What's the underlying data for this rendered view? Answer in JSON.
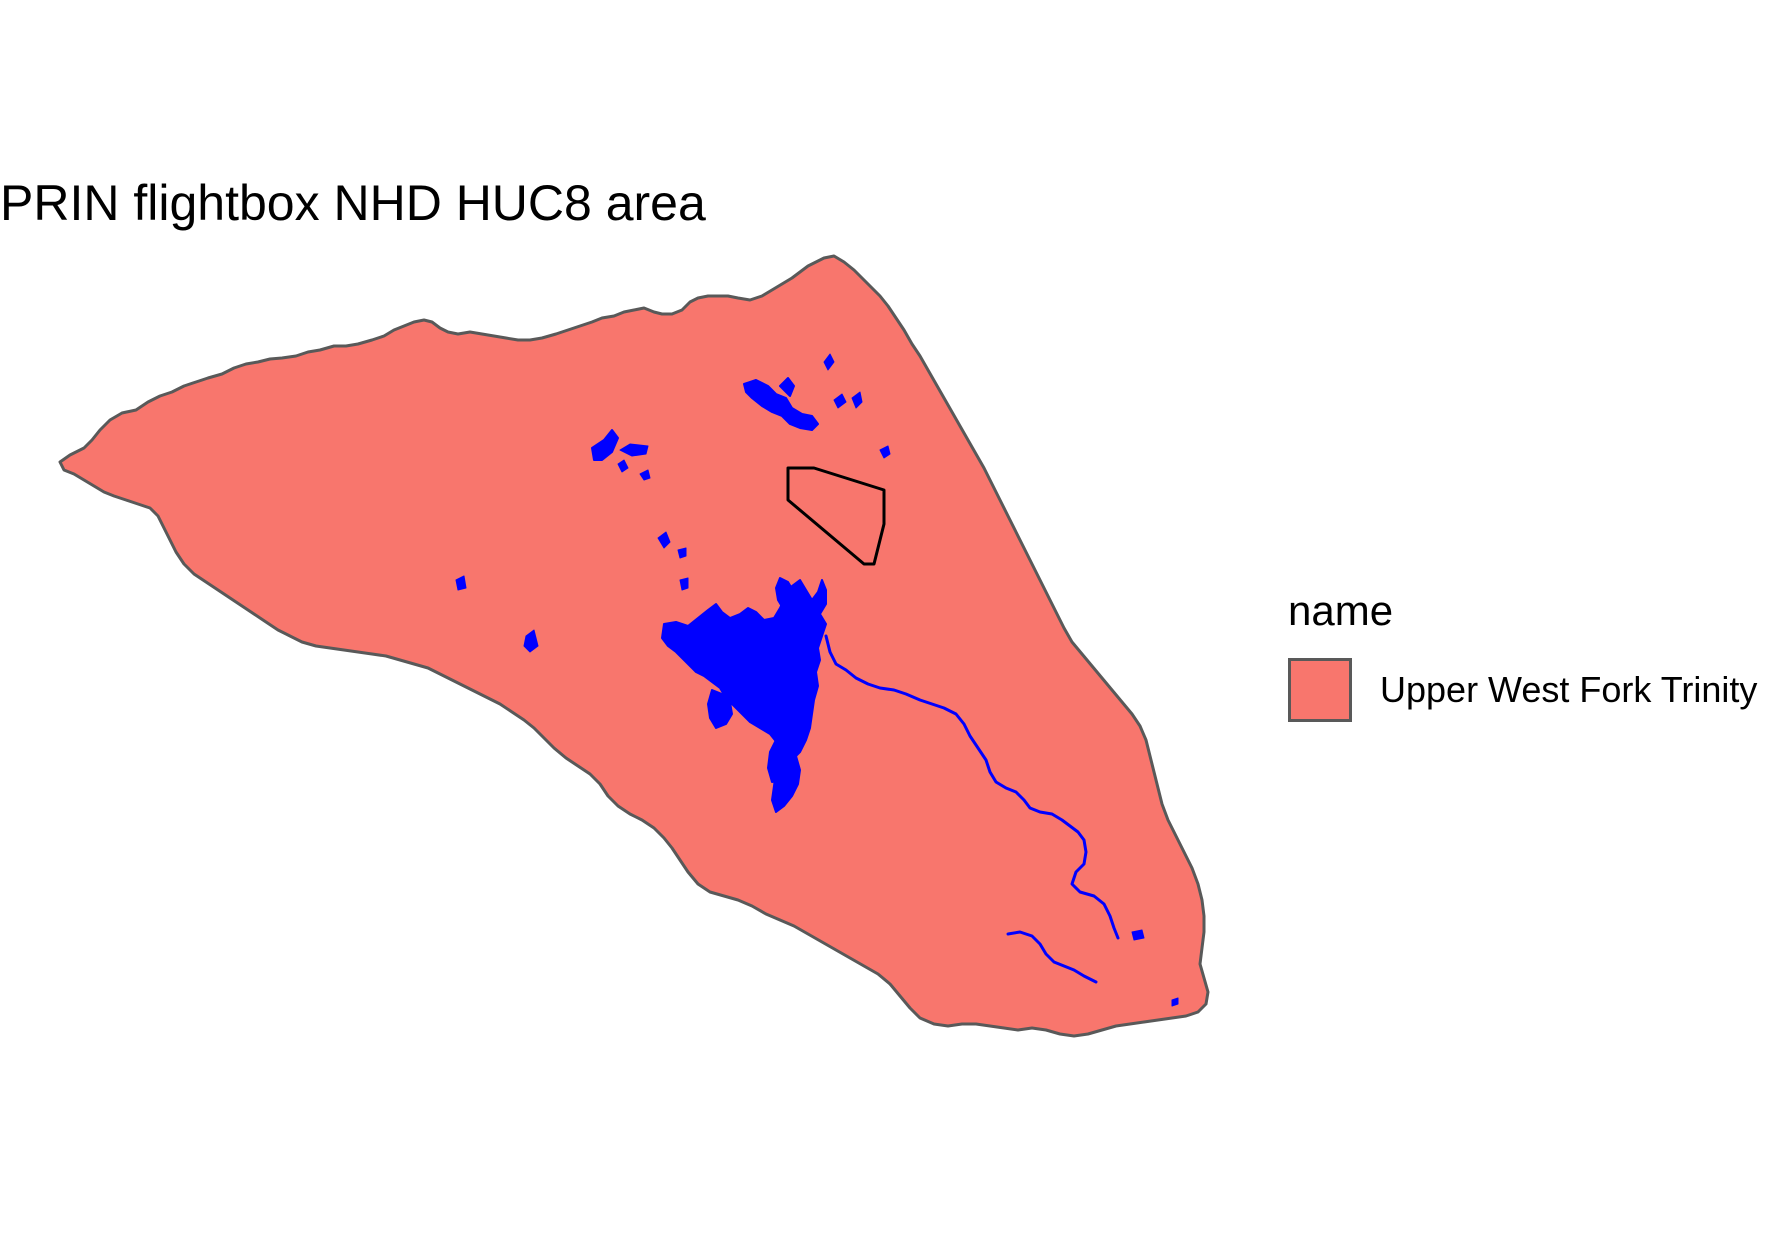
{
  "title": "PRIN flightbox NHD HUC8 area",
  "legend": {
    "title": "name",
    "items": [
      {
        "label": "Upper West Fork Trinity",
        "fill": "#F8766D",
        "outline": "#595959"
      }
    ]
  },
  "colors": {
    "huc_fill": "#F8766D",
    "huc_outline": "#595959",
    "water": "#0000FF",
    "flightbox_outline": "#000000",
    "background": "#FFFFFF"
  }
}
